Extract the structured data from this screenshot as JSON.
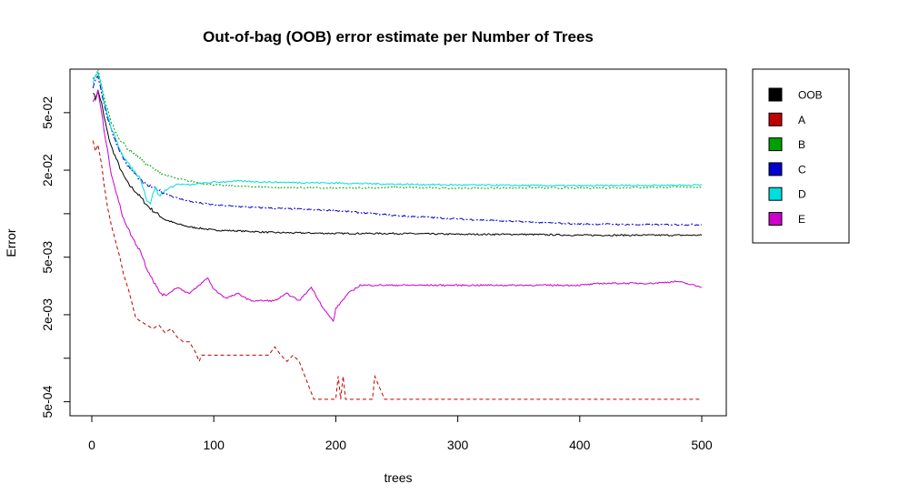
{
  "chart_data": {
    "type": "line",
    "title": "Out-of-bag (OOB) error estimate per Number of Trees",
    "xlabel": "trees",
    "ylabel": "Error",
    "xlim": [
      0,
      500
    ],
    "ylim": [
      0.0004,
      0.1
    ],
    "log_y": true,
    "x_ticks": [
      0,
      100,
      200,
      300,
      400,
      500
    ],
    "x_tick_labels": [
      "0",
      "100",
      "200",
      "300",
      "400",
      "500"
    ],
    "y_ticks": [
      0.0005,
      0.001,
      0.002,
      0.005,
      0.01,
      0.02,
      0.05
    ],
    "y_tick_labels": [
      "5e-04",
      "",
      "2e-03",
      "5e-03",
      "",
      "2e-02",
      "5e-02"
    ],
    "grid": false,
    "legend_position": "right",
    "series": [
      {
        "name": "OOB",
        "color": "#000000",
        "dash": "solid",
        "x": [
          1,
          3,
          5,
          8,
          10,
          13,
          16,
          20,
          25,
          30,
          35,
          40,
          45,
          50,
          55,
          60,
          70,
          80,
          90,
          100,
          120,
          150,
          200,
          250,
          300,
          350,
          400,
          450,
          500
        ],
        "values": [
          0.07,
          0.062,
          0.071,
          0.058,
          0.047,
          0.036,
          0.029,
          0.024,
          0.019,
          0.016,
          0.0145,
          0.013,
          0.0115,
          0.0105,
          0.0098,
          0.0091,
          0.0085,
          0.0081,
          0.0079,
          0.0077,
          0.0076,
          0.0074,
          0.0073,
          0.0073,
          0.0072,
          0.0072,
          0.0071,
          0.0071,
          0.0071
        ]
      },
      {
        "name": "A",
        "color": "#c00000",
        "dash": "4,3",
        "x": [
          1,
          3,
          5,
          8,
          10,
          13,
          16,
          20,
          23,
          26,
          30,
          33,
          36,
          40,
          45,
          50,
          55,
          60,
          65,
          70,
          75,
          80,
          85,
          88,
          90,
          100,
          120,
          145,
          150,
          155,
          160,
          165,
          170,
          182,
          200,
          202,
          204,
          206,
          208,
          215,
          230,
          232,
          240,
          260,
          300,
          400,
          500
        ],
        "values": [
          0.032,
          0.027,
          0.03,
          0.022,
          0.016,
          0.011,
          0.0083,
          0.0062,
          0.005,
          0.0038,
          0.003,
          0.0024,
          0.0019,
          0.0018,
          0.0017,
          0.0016,
          0.0017,
          0.0015,
          0.0016,
          0.0014,
          0.0013,
          0.0013,
          0.0011,
          0.00095,
          0.00105,
          0.00105,
          0.00105,
          0.00105,
          0.0012,
          0.00105,
          0.00095,
          0.00105,
          0.00095,
          0.00052,
          0.00052,
          0.00075,
          0.00052,
          0.00075,
          0.00052,
          0.00052,
          0.00052,
          0.00075,
          0.00052,
          0.00052,
          0.00052,
          0.00052,
          0.00052
        ]
      },
      {
        "name": "B",
        "color": "#00a000",
        "dash": "2,2",
        "x": [
          1,
          3,
          5,
          8,
          10,
          13,
          16,
          20,
          25,
          30,
          35,
          40,
          45,
          50,
          55,
          60,
          70,
          80,
          90,
          100,
          120,
          150,
          200,
          250,
          300,
          350,
          400,
          450,
          500
        ],
        "values": [
          0.085,
          0.09,
          0.098,
          0.078,
          0.064,
          0.052,
          0.043,
          0.036,
          0.031,
          0.028,
          0.026,
          0.024,
          0.022,
          0.0205,
          0.0195,
          0.0185,
          0.0175,
          0.0168,
          0.0162,
          0.0158,
          0.0155,
          0.0152,
          0.015,
          0.0152,
          0.015,
          0.0151,
          0.015,
          0.0152,
          0.0153
        ]
      },
      {
        "name": "C",
        "color": "#0000cc",
        "dash": "6,2,2,2",
        "x": [
          1,
          3,
          5,
          8,
          10,
          13,
          16,
          20,
          25,
          30,
          35,
          40,
          45,
          50,
          55,
          60,
          70,
          80,
          90,
          100,
          120,
          150,
          200,
          250,
          300,
          350,
          400,
          450,
          500
        ],
        "values": [
          0.075,
          0.082,
          0.09,
          0.07,
          0.057,
          0.046,
          0.038,
          0.031,
          0.025,
          0.021,
          0.019,
          0.017,
          0.0158,
          0.0152,
          0.0145,
          0.0138,
          0.0128,
          0.0122,
          0.0118,
          0.0115,
          0.0112,
          0.0109,
          0.0105,
          0.0097,
          0.0092,
          0.0088,
          0.0085,
          0.0084,
          0.0084
        ]
      },
      {
        "name": "D",
        "color": "#00dddd",
        "dash": "solid",
        "x": [
          1,
          3,
          5,
          8,
          10,
          13,
          16,
          20,
          25,
          30,
          35,
          40,
          45,
          48,
          52,
          55,
          60,
          70,
          80,
          90,
          100,
          120,
          150,
          200,
          250,
          300,
          350,
          400,
          450,
          500
        ],
        "values": [
          0.082,
          0.09,
          0.095,
          0.075,
          0.06,
          0.048,
          0.039,
          0.032,
          0.026,
          0.022,
          0.0195,
          0.0175,
          0.0125,
          0.0118,
          0.0155,
          0.0132,
          0.0145,
          0.016,
          0.0158,
          0.0162,
          0.0165,
          0.0168,
          0.0165,
          0.0163,
          0.016,
          0.0158,
          0.0157,
          0.0156,
          0.0157,
          0.0158
        ]
      },
      {
        "name": "E",
        "color": "#cc00cc",
        "dash": "solid",
        "x": [
          1,
          3,
          5,
          8,
          10,
          13,
          16,
          20,
          25,
          30,
          35,
          40,
          45,
          50,
          55,
          60,
          70,
          80,
          90,
          95,
          100,
          110,
          120,
          130,
          140,
          150,
          160,
          170,
          180,
          190,
          198,
          200,
          210,
          220,
          230,
          300,
          350,
          400,
          420,
          440,
          460,
          480,
          500
        ],
        "values": [
          0.06,
          0.064,
          0.07,
          0.05,
          0.038,
          0.027,
          0.019,
          0.014,
          0.0098,
          0.0078,
          0.0064,
          0.0055,
          0.0042,
          0.0035,
          0.0029,
          0.0027,
          0.0031,
          0.0028,
          0.0033,
          0.0036,
          0.003,
          0.0026,
          0.0028,
          0.0025,
          0.0025,
          0.0025,
          0.0028,
          0.0025,
          0.0031,
          0.0022,
          0.0018,
          0.0022,
          0.0028,
          0.0032,
          0.0032,
          0.0032,
          0.0032,
          0.0032,
          0.0033,
          0.0033,
          0.0033,
          0.0034,
          0.0031
        ]
      }
    ]
  }
}
